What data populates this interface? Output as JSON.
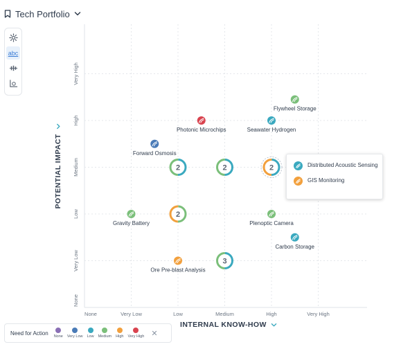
{
  "header": {
    "title": "Tech Portfolio"
  },
  "toolbar": {
    "text_tool_label": "abc"
  },
  "chart_data": {
    "type": "scatter",
    "xlabel": "INTERNAL KNOW-HOW",
    "ylabel": "POTENTIAL IMPACT",
    "x_categories": [
      "None",
      "Very Low",
      "Low",
      "Medium",
      "High",
      "Very High"
    ],
    "y_categories": [
      "None",
      "Very Low",
      "Low",
      "Medium",
      "High",
      "Very High"
    ],
    "points": [
      {
        "name": "Flywheel Storage",
        "x": 4.5,
        "y": 4.45,
        "need": "Medium"
      },
      {
        "name": "Photonic Microchips",
        "x": 2.5,
        "y": 4.0,
        "need": "Very High"
      },
      {
        "name": "Seawater Hydrogen",
        "x": 4.0,
        "y": 4.0,
        "need": "Low"
      },
      {
        "name": "Forward Osmosis",
        "x": 1.5,
        "y": 3.5,
        "need": "Very Low"
      },
      {
        "name": "Gravity Battery",
        "x": 1.0,
        "y": 2.0,
        "need": "Medium"
      },
      {
        "name": "Plenoptic Camera",
        "x": 4.0,
        "y": 2.0,
        "need": "Medium"
      },
      {
        "name": "Carbon Storage",
        "x": 4.5,
        "y": 1.5,
        "need": "Low"
      },
      {
        "name": "Ore Pre-blast Analysis",
        "x": 2.0,
        "y": 1.0,
        "need": "High"
      }
    ],
    "clusters": [
      {
        "label": "2",
        "x": 2.0,
        "y": 3.0,
        "needs": [
          "Low",
          "Medium"
        ]
      },
      {
        "label": "2",
        "x": 3.0,
        "y": 3.0,
        "needs": [
          "Low",
          "Medium"
        ]
      },
      {
        "label": "2",
        "x": 4.0,
        "y": 3.0,
        "needs": [
          "Low",
          "High"
        ],
        "selected": true
      },
      {
        "label": "2",
        "x": 2.0,
        "y": 2.0,
        "needs": [
          "Medium",
          "High"
        ]
      },
      {
        "label": "3",
        "x": 3.0,
        "y": 1.0,
        "needs": [
          "Low",
          "Medium"
        ]
      }
    ],
    "grid": true
  },
  "tooltip": {
    "items": [
      {
        "name": "Distributed Acoustic Sensing",
        "need": "Low"
      },
      {
        "name": "GIS Monitoring",
        "need": "High"
      }
    ]
  },
  "legend": {
    "title": "Need for Action",
    "items": [
      {
        "label": "None",
        "color": "#8a6fb5"
      },
      {
        "label": "Very Low",
        "color": "#4a7bb7"
      },
      {
        "label": "Low",
        "color": "#3aa9bf"
      },
      {
        "label": "Medium",
        "color": "#7bbf7a"
      },
      {
        "label": "High",
        "color": "#f2a03d"
      },
      {
        "label": "Very High",
        "color": "#d9434f"
      }
    ],
    "close_symbol": "✕"
  }
}
